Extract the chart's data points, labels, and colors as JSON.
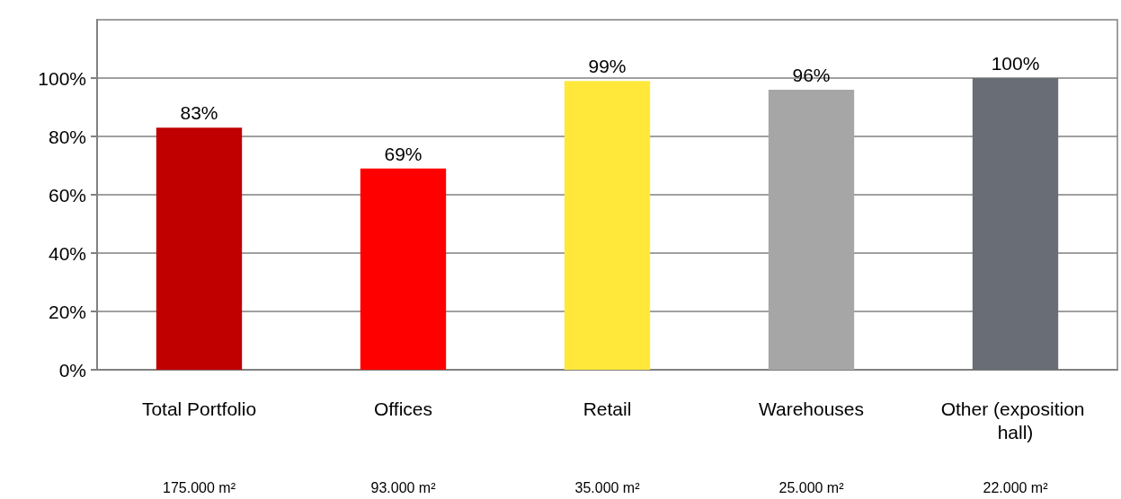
{
  "chart_data": {
    "type": "bar",
    "categories": [
      "Total Portfolio",
      "Offices",
      "Retail",
      "Warehouses",
      "Other (exposition hall)"
    ],
    "values": [
      83,
      69,
      99,
      96,
      100
    ],
    "colors": [
      "#c00000",
      "#ff0000",
      "#ffe83a",
      "#a6a6a6",
      "#696d75"
    ],
    "value_labels": [
      "83%",
      "69%",
      "99%",
      "96%",
      "100%"
    ],
    "ylim": [
      0,
      120
    ],
    "yticks": [
      {
        "value": 0,
        "label": "0%"
      },
      {
        "value": 20,
        "label": "20%"
      },
      {
        "value": 40,
        "label": "40%"
      },
      {
        "value": 60,
        "label": "60%"
      },
      {
        "value": 80,
        "label": "80%"
      },
      {
        "value": 100,
        "label": "100%"
      }
    ],
    "grid": "y",
    "annotations": [
      "175.000 m²",
      "93.000 m²",
      "35.000 m²",
      "25.000 m²",
      "22.000 m²"
    ]
  }
}
